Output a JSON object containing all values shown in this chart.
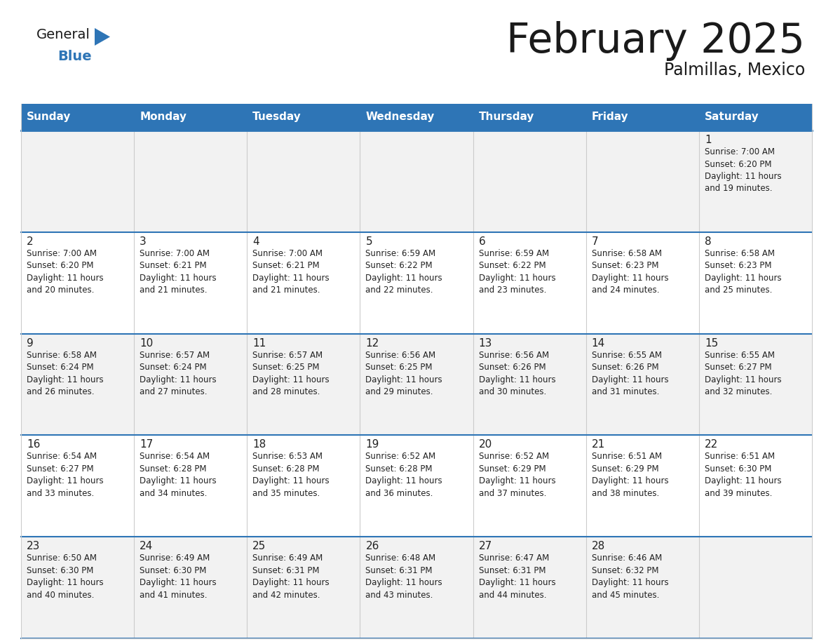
{
  "title": "February 2025",
  "subtitle": "Palmillas, Mexico",
  "header_bg_color": "#2E75B6",
  "header_text_color": "#FFFFFF",
  "cell_bg_color": "#FFFFFF",
  "alt_cell_bg_color": "#F2F2F2",
  "cell_border_color": "#CCCCCC",
  "row_border_color": "#2E75B6",
  "day_number_color": "#222222",
  "day_text_color": "#222222",
  "logo_general_color": "#1a1a1a",
  "logo_blue_color": "#2E75B6",
  "weekdays": [
    "Sunday",
    "Monday",
    "Tuesday",
    "Wednesday",
    "Thursday",
    "Friday",
    "Saturday"
  ],
  "weeks": [
    [
      {
        "day": null,
        "info": null
      },
      {
        "day": null,
        "info": null
      },
      {
        "day": null,
        "info": null
      },
      {
        "day": null,
        "info": null
      },
      {
        "day": null,
        "info": null
      },
      {
        "day": null,
        "info": null
      },
      {
        "day": 1,
        "info": "Sunrise: 7:00 AM\nSunset: 6:20 PM\nDaylight: 11 hours\nand 19 minutes."
      }
    ],
    [
      {
        "day": 2,
        "info": "Sunrise: 7:00 AM\nSunset: 6:20 PM\nDaylight: 11 hours\nand 20 minutes."
      },
      {
        "day": 3,
        "info": "Sunrise: 7:00 AM\nSunset: 6:21 PM\nDaylight: 11 hours\nand 21 minutes."
      },
      {
        "day": 4,
        "info": "Sunrise: 7:00 AM\nSunset: 6:21 PM\nDaylight: 11 hours\nand 21 minutes."
      },
      {
        "day": 5,
        "info": "Sunrise: 6:59 AM\nSunset: 6:22 PM\nDaylight: 11 hours\nand 22 minutes."
      },
      {
        "day": 6,
        "info": "Sunrise: 6:59 AM\nSunset: 6:22 PM\nDaylight: 11 hours\nand 23 minutes."
      },
      {
        "day": 7,
        "info": "Sunrise: 6:58 AM\nSunset: 6:23 PM\nDaylight: 11 hours\nand 24 minutes."
      },
      {
        "day": 8,
        "info": "Sunrise: 6:58 AM\nSunset: 6:23 PM\nDaylight: 11 hours\nand 25 minutes."
      }
    ],
    [
      {
        "day": 9,
        "info": "Sunrise: 6:58 AM\nSunset: 6:24 PM\nDaylight: 11 hours\nand 26 minutes."
      },
      {
        "day": 10,
        "info": "Sunrise: 6:57 AM\nSunset: 6:24 PM\nDaylight: 11 hours\nand 27 minutes."
      },
      {
        "day": 11,
        "info": "Sunrise: 6:57 AM\nSunset: 6:25 PM\nDaylight: 11 hours\nand 28 minutes."
      },
      {
        "day": 12,
        "info": "Sunrise: 6:56 AM\nSunset: 6:25 PM\nDaylight: 11 hours\nand 29 minutes."
      },
      {
        "day": 13,
        "info": "Sunrise: 6:56 AM\nSunset: 6:26 PM\nDaylight: 11 hours\nand 30 minutes."
      },
      {
        "day": 14,
        "info": "Sunrise: 6:55 AM\nSunset: 6:26 PM\nDaylight: 11 hours\nand 31 minutes."
      },
      {
        "day": 15,
        "info": "Sunrise: 6:55 AM\nSunset: 6:27 PM\nDaylight: 11 hours\nand 32 minutes."
      }
    ],
    [
      {
        "day": 16,
        "info": "Sunrise: 6:54 AM\nSunset: 6:27 PM\nDaylight: 11 hours\nand 33 minutes."
      },
      {
        "day": 17,
        "info": "Sunrise: 6:54 AM\nSunset: 6:28 PM\nDaylight: 11 hours\nand 34 minutes."
      },
      {
        "day": 18,
        "info": "Sunrise: 6:53 AM\nSunset: 6:28 PM\nDaylight: 11 hours\nand 35 minutes."
      },
      {
        "day": 19,
        "info": "Sunrise: 6:52 AM\nSunset: 6:28 PM\nDaylight: 11 hours\nand 36 minutes."
      },
      {
        "day": 20,
        "info": "Sunrise: 6:52 AM\nSunset: 6:29 PM\nDaylight: 11 hours\nand 37 minutes."
      },
      {
        "day": 21,
        "info": "Sunrise: 6:51 AM\nSunset: 6:29 PM\nDaylight: 11 hours\nand 38 minutes."
      },
      {
        "day": 22,
        "info": "Sunrise: 6:51 AM\nSunset: 6:30 PM\nDaylight: 11 hours\nand 39 minutes."
      }
    ],
    [
      {
        "day": 23,
        "info": "Sunrise: 6:50 AM\nSunset: 6:30 PM\nDaylight: 11 hours\nand 40 minutes."
      },
      {
        "day": 24,
        "info": "Sunrise: 6:49 AM\nSunset: 6:30 PM\nDaylight: 11 hours\nand 41 minutes."
      },
      {
        "day": 25,
        "info": "Sunrise: 6:49 AM\nSunset: 6:31 PM\nDaylight: 11 hours\nand 42 minutes."
      },
      {
        "day": 26,
        "info": "Sunrise: 6:48 AM\nSunset: 6:31 PM\nDaylight: 11 hours\nand 43 minutes."
      },
      {
        "day": 27,
        "info": "Sunrise: 6:47 AM\nSunset: 6:31 PM\nDaylight: 11 hours\nand 44 minutes."
      },
      {
        "day": 28,
        "info": "Sunrise: 6:46 AM\nSunset: 6:32 PM\nDaylight: 11 hours\nand 45 minutes."
      },
      {
        "day": null,
        "info": null
      }
    ]
  ]
}
